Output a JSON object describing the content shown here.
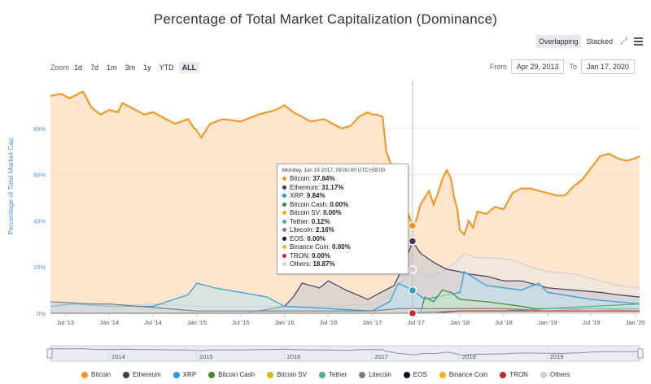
{
  "title": "Percentage of Total Market Capitalization (Dominance)",
  "view_toggle": {
    "overlapping": "Overlapping",
    "stacked": "Stacked"
  },
  "zoom": {
    "label": "Zoom",
    "options": [
      "1d",
      "7d",
      "1m",
      "3m",
      "1y",
      "YTD",
      "ALL"
    ],
    "active": "ALL"
  },
  "date_range": {
    "from_label": "From",
    "from": "Apr 29, 2013",
    "to_label": "To",
    "to": "Jan 17, 2020"
  },
  "tooltip": {
    "date": "Monday, Jun 19 2017, 09:00:00 UTC+09:00",
    "rows": [
      {
        "name": "Bitcoin",
        "value": "37.84%",
        "color": "#f7931a"
      },
      {
        "name": "Ethereum",
        "value": "31.17%",
        "color": "#3c3c5d"
      },
      {
        "name": "XRP",
        "value": "9.84%",
        "color": "#2a9bd8"
      },
      {
        "name": "Bitcoin Cash",
        "value": "0.00%",
        "color": "#3f8c2a"
      },
      {
        "name": "Bitcoin SV",
        "value": "0.00%",
        "color": "#e8b40c"
      },
      {
        "name": "Tether",
        "value": "0.12%",
        "color": "#4caf8e"
      },
      {
        "name": "Litecoin",
        "value": "2.16%",
        "color": "#7d7d7d"
      },
      {
        "name": "EOS",
        "value": "0.00%",
        "color": "#111133"
      },
      {
        "name": "Binance Coin",
        "value": "0.00%",
        "color": "#f0b90b"
      },
      {
        "name": "TRON",
        "value": "0.00%",
        "color": "#c62828"
      },
      {
        "name": "Others",
        "value": "18.87%",
        "color": "#cfcfcf"
      }
    ]
  },
  "legend": [
    {
      "name": "Bitcoin",
      "color": "#f7931a"
    },
    {
      "name": "Ethereum",
      "color": "#3c3c5d"
    },
    {
      "name": "XRP",
      "color": "#2a9bd8"
    },
    {
      "name": "Bitcoin Cash",
      "color": "#3f8c2a"
    },
    {
      "name": "Bitcoin SV",
      "color": "#e8b40c"
    },
    {
      "name": "Tether",
      "color": "#4caf8e"
    },
    {
      "name": "Litecoin",
      "color": "#7d7d7d"
    },
    {
      "name": "EOS",
      "color": "#111133"
    },
    {
      "name": "Binance Coin",
      "color": "#f0b90b"
    },
    {
      "name": "TRON",
      "color": "#c62828"
    },
    {
      "name": "Others",
      "color": "#cfcfcf"
    }
  ],
  "navigator": {
    "year_labels": [
      "2014",
      "2015",
      "2016",
      "2017",
      "2018",
      "2019"
    ]
  },
  "chart_data": {
    "type": "area",
    "title": "Percentage of Total Market Capitalization (Dominance)",
    "ylabel": "Percentage of Total Market Cap",
    "xlabel": "",
    "ylim": [
      0,
      100
    ],
    "yticks": [
      0,
      20,
      40,
      60,
      80
    ],
    "ytick_labels": [
      "0%",
      "20%",
      "40%",
      "60%",
      "80%"
    ],
    "x_tick_labels": [
      "Jul '13",
      "Jan '14",
      "Jul '14",
      "Jan '15",
      "Jul '15",
      "Jan '16",
      "Jul '16",
      "Jan '17",
      "Jul '17",
      "Jan '18",
      "Jul '18",
      "Jan '19",
      "Jul '19",
      "Jan '20"
    ],
    "x_tick_positions": [
      2013.5,
      2014.0,
      2014.5,
      2015.0,
      2015.5,
      2016.0,
      2016.5,
      2017.0,
      2017.5,
      2018.0,
      2018.5,
      2019.0,
      2019.5,
      2020.0
    ],
    "xlim": [
      2013.33,
      2020.05
    ],
    "crosshair_x": 2017.46,
    "series": [
      {
        "name": "Bitcoin",
        "color": "#f7931a",
        "fill": "#fde2c4",
        "x": [
          2013.33,
          2013.45,
          2013.55,
          2013.7,
          2013.8,
          2013.9,
          2014.0,
          2014.1,
          2014.15,
          2014.3,
          2014.4,
          2014.5,
          2014.6,
          2014.75,
          2014.9,
          2014.97,
          2015.0,
          2015.05,
          2015.15,
          2015.3,
          2015.5,
          2015.7,
          2015.9,
          2016.0,
          2016.1,
          2016.2,
          2016.3,
          2016.45,
          2016.55,
          2016.65,
          2016.75,
          2016.85,
          2016.95,
          2017.0,
          2017.05,
          2017.12,
          2017.16,
          2017.2,
          2017.25,
          2017.3,
          2017.35,
          2017.4,
          2017.46,
          2017.5,
          2017.55,
          2017.6,
          2017.65,
          2017.7,
          2017.75,
          2017.8,
          2017.85,
          2017.9,
          2017.93,
          2017.97,
          2018.0,
          2018.05,
          2018.1,
          2018.15,
          2018.2,
          2018.3,
          2018.4,
          2018.5,
          2018.6,
          2018.7,
          2018.8,
          2018.9,
          2019.0,
          2019.1,
          2019.2,
          2019.3,
          2019.4,
          2019.5,
          2019.6,
          2019.7,
          2019.8,
          2019.9,
          2020.0,
          2020.05
        ],
        "values": [
          94,
          95,
          93,
          96,
          89,
          86,
          88,
          87,
          91,
          88,
          86,
          87,
          85,
          82,
          84,
          80,
          79,
          76,
          82,
          84,
          83,
          86,
          88,
          90,
          87,
          85,
          83,
          84,
          82,
          80,
          81,
          85,
          87,
          86,
          86,
          85,
          70,
          66,
          60,
          50,
          48,
          44,
          38,
          40,
          47,
          50,
          53,
          47,
          52,
          58,
          62,
          58,
          51,
          45,
          36,
          34,
          40,
          37,
          44,
          43,
          46,
          45,
          52,
          54,
          54,
          53,
          52,
          51,
          51,
          55,
          58,
          63,
          68,
          69,
          67,
          66,
          67,
          68
        ]
      },
      {
        "name": "Others",
        "color": "#cfcfcf",
        "fill": "#e8e8e8",
        "x": [
          2013.33,
          2013.6,
          2014.0,
          2014.5,
          2015.0,
          2015.5,
          2016.0,
          2016.5,
          2017.0,
          2017.2,
          2017.35,
          2017.46,
          2017.6,
          2017.8,
          2017.95,
          2018.05,
          2018.2,
          2018.4,
          2018.6,
          2018.8,
          2019.0,
          2019.3,
          2019.6,
          2019.8,
          2020.05
        ],
        "values": [
          4,
          4,
          3,
          4,
          3,
          3,
          3,
          3,
          4,
          8,
          14,
          19,
          16,
          18,
          22,
          26,
          24,
          24,
          23,
          20,
          18,
          17,
          14,
          12,
          11
        ]
      },
      {
        "name": "Ethereum",
        "color": "#3c3c5d",
        "fill": "#c4c6d0",
        "x": [
          2013.33,
          2015.55,
          2015.7,
          2016.0,
          2016.1,
          2016.2,
          2016.4,
          2016.5,
          2016.7,
          2016.95,
          2017.1,
          2017.25,
          2017.35,
          2017.46,
          2017.55,
          2017.7,
          2017.85,
          2018.0,
          2018.1,
          2018.3,
          2018.5,
          2018.7,
          2018.9,
          2019.0,
          2019.3,
          2019.6,
          2019.8,
          2020.05
        ],
        "values": [
          0,
          0,
          1,
          3,
          7,
          13,
          11,
          14,
          10,
          6,
          9,
          12,
          20,
          31,
          26,
          22,
          19,
          18,
          17,
          16,
          14,
          14,
          12,
          11,
          10,
          9,
          8,
          7
        ]
      },
      {
        "name": "XRP",
        "color": "#2a9bd8",
        "fill": "#bfe0f2",
        "x": [
          2013.33,
          2013.6,
          2014.0,
          2014.5,
          2014.9,
          2015.0,
          2015.2,
          2015.5,
          2015.8,
          2016.0,
          2016.5,
          2017.0,
          2017.2,
          2017.3,
          2017.46,
          2017.6,
          2018.0,
          2018.05,
          2018.3,
          2018.7,
          2018.9,
          2019.0,
          2019.5,
          2020.05
        ],
        "values": [
          3,
          4,
          3,
          3,
          8,
          13,
          11,
          9,
          7,
          3,
          2,
          1,
          5,
          13,
          10,
          6,
          9,
          18,
          12,
          10,
          13,
          9,
          6,
          4
        ]
      },
      {
        "name": "Bitcoin Cash",
        "color": "#3f8c2a",
        "fill": "#c8e3c0",
        "x": [
          2013.33,
          2017.55,
          2017.6,
          2017.7,
          2017.8,
          2017.9,
          2018.0,
          2018.3,
          2018.7,
          2018.85,
          2019.0,
          2020.05
        ],
        "values": [
          0,
          0,
          7,
          5,
          10,
          9,
          6,
          5,
          3,
          2,
          2,
          2
        ]
      },
      {
        "name": "Litecoin",
        "color": "#7d7d7d",
        "fill": "#d6d6d6",
        "x": [
          2013.33,
          2013.8,
          2014.0,
          2015.0,
          2016.0,
          2017.0,
          2017.3,
          2017.46,
          2017.9,
          2018.5,
          2019.0,
          2019.5,
          2020.05
        ],
        "values": [
          5,
          4,
          4,
          1,
          1,
          1,
          2,
          2,
          2,
          2,
          1,
          2,
          1
        ]
      },
      {
        "name": "Tether",
        "color": "#4caf8e",
        "fill": "#cbe8dd",
        "x": [
          2013.33,
          2017.3,
          2018.0,
          2018.5,
          2019.0,
          2019.5,
          2020.05
        ],
        "values": [
          0,
          0,
          1,
          1,
          2,
          3,
          4
        ]
      },
      {
        "name": "TRON",
        "color": "#c62828",
        "fill": "#f3c8c8",
        "x": [
          2013.33,
          2017.7,
          2018.0,
          2018.5,
          2020.05
        ],
        "values": [
          0,
          0,
          1,
          1,
          1
        ]
      }
    ],
    "highlight_points": [
      {
        "series": "Bitcoin",
        "x": 2017.46,
        "y": 37.84
      },
      {
        "series": "Ethereum",
        "x": 2017.46,
        "y": 31.17
      },
      {
        "series": "Others",
        "x": 2017.46,
        "y": 18.87
      },
      {
        "series": "XRP",
        "x": 2017.46,
        "y": 9.84
      },
      {
        "series": "TRON",
        "x": 2017.46,
        "y": 0.0
      }
    ]
  }
}
